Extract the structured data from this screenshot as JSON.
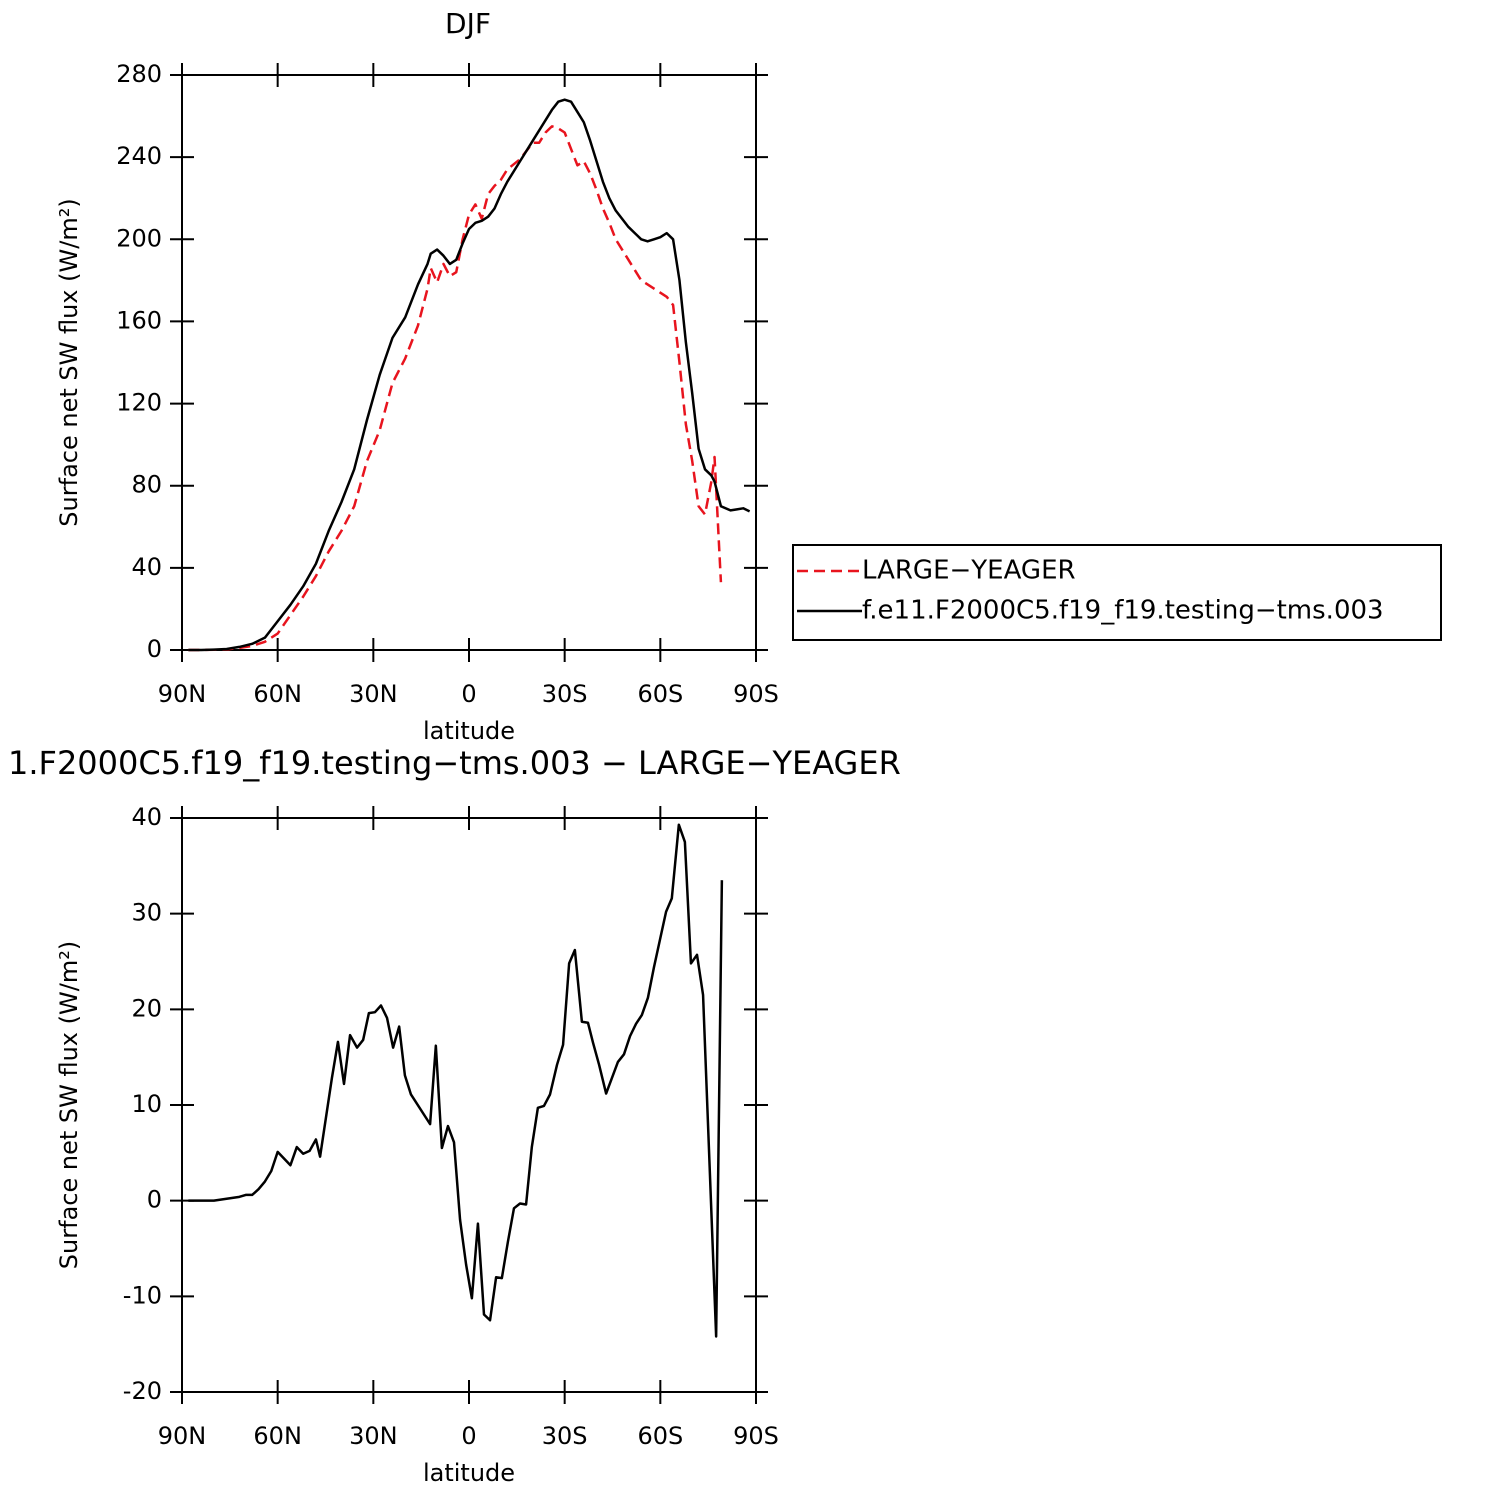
{
  "chart_data": [
    {
      "type": "line",
      "title": "DJF",
      "xlabel": "latitude",
      "ylabel": "Surface net SW flux (W/m²)",
      "xlim": [
        90,
        -90
      ],
      "xticks": [
        {
          "value": 90,
          "label": "90N"
        },
        {
          "value": 60,
          "label": "60N"
        },
        {
          "value": 30,
          "label": "30N"
        },
        0,
        {
          "value": -30,
          "label": "30S"
        },
        {
          "value": -60,
          "label": "60S"
        },
        {
          "value": -90,
          "label": "90S"
        }
      ],
      "ylim": [
        0,
        280
      ],
      "yticks": [
        0,
        40,
        80,
        120,
        160,
        200,
        240,
        280
      ],
      "legend": "right",
      "x": [
        88,
        84,
        80,
        76,
        72,
        68,
        64,
        60,
        56,
        52,
        48,
        44,
        40,
        36,
        32,
        28,
        24,
        20,
        16,
        13,
        12,
        10,
        8,
        6,
        4,
        2,
        0,
        -2,
        -4,
        -6,
        -8,
        -10,
        -12,
        -16,
        -20,
        -22,
        -24,
        -26,
        -28,
        -30,
        -32,
        -34,
        -36,
        -38,
        -40,
        -42,
        -44,
        -46,
        -48,
        -50,
        -52,
        -54,
        -56,
        -58,
        -60,
        -62,
        -64,
        -66,
        -68,
        -70,
        -72,
        -74,
        -76,
        -77,
        -79,
        -82,
        -84,
        -86,
        -88
      ],
      "series": [
        {
          "name": "LARGE−YEAGER",
          "color": "#e8141e",
          "dashed": true,
          "values": [
            0,
            0,
            0.1,
            0.3,
            1,
            2,
            4,
            8,
            17,
            26,
            36,
            48,
            58,
            70,
            92,
            107,
            130,
            142,
            158,
            176,
            186,
            179,
            188,
            182,
            184,
            200,
            212,
            217,
            210,
            222,
            226,
            229,
            234,
            239,
            247,
            247,
            252,
            255,
            254,
            252,
            244,
            236,
            238,
            232,
            224,
            215,
            208,
            200,
            195,
            190,
            185,
            180,
            178,
            176,
            174,
            172,
            168,
            140,
            110,
            92,
            70,
            66,
            82,
            94,
            33,
            null,
            null,
            null,
            null
          ]
        },
        {
          "name": "f.e11.F2000C5.f19_f19.testing−tms.003",
          "color": "#000000",
          "dashed": false,
          "values": [
            0,
            0,
            0.2,
            0.5,
            1.5,
            3,
            6,
            14,
            22,
            31,
            42,
            58,
            72,
            88,
            112,
            134,
            152,
            162,
            178,
            188,
            193,
            195,
            192,
            188,
            190,
            198,
            205,
            208,
            209,
            211,
            215,
            222,
            228,
            238,
            248,
            253,
            258,
            263,
            267,
            268,
            267,
            262,
            257,
            248,
            238,
            228,
            220,
            214,
            210,
            206,
            203,
            200,
            199,
            200,
            201,
            203,
            200,
            180,
            150,
            125,
            98,
            88,
            85,
            82,
            70,
            68,
            68.5,
            69,
            67.5
          ]
        }
      ]
    },
    {
      "type": "line",
      "title": "1.F2000C5.f19_f19.testing−tms.003 − LARGE−YEAGER",
      "xlabel": "latitude",
      "ylabel": "Surface net SW flux (W/m²)",
      "xlim": [
        90,
        -90
      ],
      "xticks": [
        {
          "value": 90,
          "label": "90N"
        },
        {
          "value": 60,
          "label": "60N"
        },
        {
          "value": 30,
          "label": "30N"
        },
        0,
        {
          "value": -30,
          "label": "30S"
        },
        {
          "value": -60,
          "label": "60S"
        },
        {
          "value": -90,
          "label": "90S"
        }
      ],
      "ylim": [
        -20,
        40
      ],
      "yticks": [
        -20,
        -10,
        0,
        10,
        20,
        30,
        40
      ],
      "x": [
        88,
        84,
        80,
        76,
        72,
        70,
        68,
        66,
        64,
        62,
        60,
        56,
        54,
        52,
        50,
        48,
        46.7,
        43,
        41.1,
        39.2,
        37.3,
        35.1,
        33.2,
        31.4,
        29.5,
        27.6,
        25.7,
        23.8,
        21.9,
        20.1,
        18.2,
        12.2,
        10.4,
        8.5,
        6.6,
        4.7,
        2.8,
        0.9,
        -0.9,
        -2.8,
        -4.7,
        -6.6,
        -8.5,
        -10.3,
        -12.2,
        -14.1,
        -16,
        -17.9,
        -19.7,
        -21.6,
        -23.5,
        -25.4,
        -27.6,
        -29.5,
        -31.4,
        -33.2,
        -35.4,
        -37.3,
        -38.9,
        -40.8,
        -43,
        -44.8,
        -46.7,
        -48.6,
        -50.5,
        -52.4,
        -54.2,
        -56.1,
        -58,
        -59.9,
        -61.8,
        -63.6,
        -65.8,
        -67.7,
        -69.6,
        -71.5,
        -73.4,
        -77.5,
        -79.3
      ],
      "series": [
        {
          "color": "#000000",
          "dashed": false,
          "values": [
            0,
            0,
            0,
            0.2,
            0.4,
            0.6,
            0.6,
            1.2,
            2,
            3.1,
            5.1,
            3.7,
            5.6,
            4.9,
            5.2,
            6.4,
            4.6,
            12.8,
            16.6,
            12.2,
            17.3,
            16,
            16.8,
            19.6,
            19.7,
            20.4,
            19.1,
            16,
            18.2,
            13.1,
            11.1,
            8,
            16.2,
            5.5,
            7.8,
            6.1,
            -2,
            -6.7,
            -10.2,
            -2.4,
            -11.9,
            -12.5,
            -8,
            -8.1,
            -4.3,
            -0.8,
            -0.3,
            -0.4,
            5.6,
            9.7,
            9.9,
            11.1,
            14.2,
            16.3,
            24.8,
            26.2,
            18.7,
            18.6,
            16.5,
            14.2,
            11.2,
            12.8,
            14.5,
            15.3,
            17.2,
            18.5,
            19.4,
            21.2,
            24.4,
            27.3,
            30.2,
            31.6,
            39.3,
            37.5,
            24.8,
            25.7,
            21.5,
            -14.2,
            33.5
          ]
        }
      ]
    }
  ]
}
